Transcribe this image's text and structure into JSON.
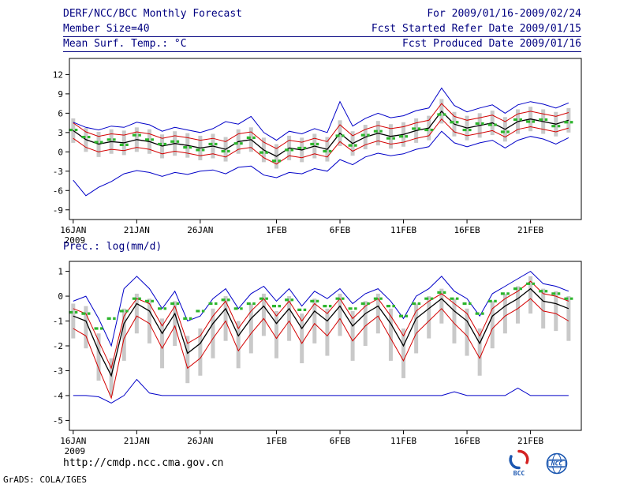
{
  "header": {
    "title": "DERF/NCC/BCC Monthly Forecast",
    "date_range": "For 2009/01/16-2009/02/24",
    "member_size": "Member Size=40",
    "refer_date": "Fcst Started Refer Date 2009/01/15",
    "variable_label": "Mean Surf. Temp.: °C",
    "produced_date": "Fcst Produced Date 2009/01/16"
  },
  "footer": {
    "url": "http://cmdp.ncc.cma.gov.cn",
    "credit": "GrADS: COLA/IGES",
    "bcc_logo_label": "BCC",
    "ncc_logo_label": "NCC"
  },
  "colors": {
    "header_text": "#000080",
    "axis_text": "#000000",
    "max_min_line": "#0000c8",
    "quartile_line": "#d40000",
    "mean_line": "#000000",
    "observation_dash": "#2db52d",
    "spread_bar": "#c9c9c9",
    "logo_blue": "#1a56b0",
    "logo_red": "#d42222"
  },
  "chart_data": [
    {
      "type": "line",
      "title": "Mean Surf. Temp.: °C",
      "xlabel": "",
      "ylabel": "",
      "x_sub_label": "2009",
      "n_days": 40,
      "ylim": [
        -10.5,
        14.5
      ],
      "yticks": [
        -9,
        -6,
        -3,
        0,
        3,
        6,
        9,
        12
      ],
      "x_tick_positions": [
        0,
        5,
        10,
        16,
        21,
        26,
        31,
        36
      ],
      "x_tick_labels": [
        "16JAN",
        "21JAN",
        "26JAN",
        "1FEB",
        "6FEB",
        "11FEB",
        "16FEB",
        "21FEB"
      ],
      "grid": false,
      "legend": false,
      "series": [
        {
          "name": "ensemble-spread",
          "type": "bar",
          "color": "#c9c9c9",
          "low": [
            1.4,
            0.0,
            -0.8,
            -0.3,
            -0.5,
            0.0,
            -0.3,
            -1.0,
            -0.6,
            -0.9,
            -1.3,
            -1.0,
            -1.5,
            -0.3,
            0.0,
            -1.6,
            -2.6,
            -1.3,
            -1.6,
            -1.0,
            -1.5,
            0.9,
            -0.6,
            0.4,
            1.0,
            0.5,
            0.8,
            1.4,
            1.8,
            4.4,
            2.4,
            1.8,
            2.2,
            2.6,
            1.6,
            2.8,
            3.2,
            2.8,
            2.4,
            3.0
          ],
          "high": [
            5.2,
            3.7,
            3.1,
            3.5,
            3.3,
            3.8,
            3.5,
            2.7,
            3.2,
            2.9,
            2.5,
            2.8,
            2.3,
            3.5,
            3.8,
            2.2,
            1.2,
            2.5,
            2.2,
            2.8,
            2.3,
            4.9,
            3.2,
            4.2,
            4.8,
            4.3,
            4.6,
            5.2,
            5.6,
            8.2,
            6.2,
            5.6,
            6.0,
            6.4,
            5.4,
            6.6,
            7.0,
            6.6,
            6.2,
            6.8
          ]
        },
        {
          "name": "ensemble-max",
          "type": "line",
          "color": "#0000c8",
          "width": 1,
          "values": [
            4.6,
            3.8,
            3.4,
            4.0,
            3.8,
            4.6,
            4.2,
            3.2,
            3.8,
            3.4,
            3.0,
            3.6,
            4.7,
            4.3,
            5.5,
            3.0,
            1.8,
            3.2,
            2.8,
            3.6,
            3.0,
            7.8,
            4.0,
            5.2,
            6.0,
            5.3,
            5.6,
            6.4,
            6.8,
            9.9,
            7.2,
            6.2,
            6.8,
            7.3,
            6.0,
            7.3,
            7.8,
            7.4,
            6.8,
            7.6
          ]
        },
        {
          "name": "ensemble-min",
          "type": "line",
          "color": "#0000c8",
          "width": 1,
          "values": [
            -4.4,
            -6.8,
            -5.5,
            -4.6,
            -3.4,
            -2.9,
            -3.2,
            -3.8,
            -3.2,
            -3.5,
            -3.0,
            -2.8,
            -3.4,
            -2.4,
            -2.2,
            -3.6,
            -4.0,
            -3.2,
            -3.4,
            -2.6,
            -3.0,
            -1.2,
            -2.0,
            -0.8,
            -0.2,
            -0.6,
            -0.3,
            0.4,
            0.8,
            3.2,
            1.4,
            0.8,
            1.4,
            1.8,
            0.6,
            1.8,
            2.4,
            2.0,
            1.2,
            2.2
          ]
        },
        {
          "name": "upper-quartile",
          "type": "line",
          "color": "#d40000",
          "width": 1,
          "values": [
            4.5,
            3.1,
            2.4,
            2.8,
            2.6,
            3.1,
            2.8,
            2.1,
            2.5,
            2.2,
            1.8,
            2.1,
            1.6,
            2.8,
            3.1,
            1.5,
            0.5,
            1.8,
            1.5,
            2.1,
            1.6,
            4.2,
            2.5,
            3.5,
            4.1,
            3.6,
            3.9,
            4.5,
            4.9,
            7.5,
            5.5,
            4.9,
            5.3,
            5.7,
            4.7,
            5.9,
            6.3,
            5.9,
            5.5,
            6.1
          ]
        },
        {
          "name": "lower-quartile",
          "type": "line",
          "color": "#d40000",
          "width": 1,
          "values": [
            2.1,
            0.7,
            0.0,
            0.4,
            0.2,
            0.7,
            0.4,
            -0.3,
            0.1,
            -0.2,
            -0.6,
            -0.3,
            -0.8,
            0.4,
            0.7,
            -0.9,
            -1.9,
            -0.6,
            -0.9,
            -0.3,
            -0.8,
            1.6,
            0.1,
            1.1,
            1.7,
            1.2,
            1.5,
            2.1,
            2.5,
            5.1,
            3.1,
            2.5,
            2.9,
            3.3,
            2.3,
            3.5,
            3.9,
            3.5,
            3.1,
            3.7
          ]
        },
        {
          "name": "ensemble-mean",
          "type": "line",
          "color": "#000000",
          "width": 1.3,
          "values": [
            3.3,
            1.9,
            1.2,
            1.6,
            1.4,
            1.9,
            1.6,
            0.9,
            1.3,
            1.0,
            0.6,
            0.9,
            0.4,
            1.6,
            1.9,
            0.3,
            -0.7,
            0.6,
            0.3,
            0.9,
            0.4,
            2.9,
            1.3,
            2.3,
            2.9,
            2.4,
            2.7,
            3.3,
            3.7,
            6.3,
            4.3,
            3.7,
            4.1,
            4.5,
            3.5,
            4.7,
            5.1,
            4.7,
            4.3,
            4.9
          ]
        },
        {
          "name": "observation",
          "type": "dash",
          "color": "#2db52d",
          "values": [
            3.4,
            2.3,
            1.5,
            1.9,
            1.1,
            2.6,
            1.9,
            1.2,
            1.6,
            0.7,
            0.3,
            1.2,
            0.1,
            1.3,
            2.2,
            -0.1,
            -1.4,
            0.3,
            0.6,
            1.2,
            0.1,
            2.5,
            1.0,
            2.6,
            3.2,
            2.1,
            2.4,
            3.6,
            3.4,
            5.8,
            4.6,
            3.4,
            4.4,
            4.2,
            3.1,
            5.0,
            4.7,
            5.0,
            4.0,
            4.6
          ]
        }
      ]
    },
    {
      "type": "line",
      "title": "Prec.: log(mm/d)",
      "xlabel": "",
      "ylabel": "",
      "x_sub_label": "2009",
      "n_days": 40,
      "ylim": [
        -5.4,
        1.4
      ],
      "yticks": [
        -5,
        -4,
        -3,
        -2,
        -1,
        0,
        1
      ],
      "x_tick_positions": [
        0,
        5,
        10,
        16,
        21,
        26,
        31,
        36
      ],
      "x_tick_labels": [
        "16JAN",
        "21JAN",
        "26JAN",
        "1FEB",
        "6FEB",
        "11FEB",
        "16FEB",
        "21FEB"
      ],
      "grid": false,
      "legend": false,
      "series": [
        {
          "name": "ensemble-spread",
          "type": "bar",
          "color": "#c9c9c9",
          "low": [
            -1.7,
            -2.1,
            -3.4,
            -4.0,
            -2.6,
            -1.5,
            -1.9,
            -2.9,
            -2.0,
            -3.5,
            -3.2,
            -2.5,
            -1.8,
            -2.9,
            -2.3,
            -1.6,
            -2.5,
            -1.8,
            -2.7,
            -1.9,
            -2.4,
            -1.6,
            -2.6,
            -2.0,
            -1.5,
            -2.6,
            -3.3,
            -2.3,
            -1.7,
            -1.1,
            -1.9,
            -2.4,
            -3.2,
            -2.1,
            -1.5,
            -1.1,
            -0.7,
            -1.3,
            -1.4,
            -1.8
          ],
          "high": [
            -0.3,
            -0.4,
            -1.5,
            -2.5,
            -0.5,
            0.1,
            -0.1,
            -0.9,
            -0.2,
            -1.6,
            -1.3,
            -0.5,
            0.0,
            -1.0,
            -0.3,
            0.1,
            -0.6,
            0.0,
            -0.7,
            -0.1,
            -0.5,
            0.1,
            -0.6,
            -0.2,
            0.1,
            -0.5,
            -1.3,
            -0.3,
            0.0,
            0.3,
            -0.1,
            -0.5,
            -1.3,
            -0.2,
            0.1,
            0.4,
            0.8,
            0.3,
            0.2,
            0.0
          ]
        },
        {
          "name": "ensemble-max",
          "type": "line",
          "color": "#0000c8",
          "width": 1,
          "values": [
            -0.2,
            0.0,
            -0.9,
            -2.0,
            0.3,
            0.8,
            0.3,
            -0.5,
            0.2,
            -1.0,
            -0.8,
            -0.1,
            0.3,
            -0.5,
            0.1,
            0.4,
            -0.2,
            0.3,
            -0.4,
            0.2,
            -0.1,
            0.3,
            -0.3,
            0.1,
            0.3,
            -0.2,
            -0.9,
            0.0,
            0.3,
            0.8,
            0.2,
            -0.1,
            -0.8,
            0.1,
            0.4,
            0.7,
            1.0,
            0.5,
            0.4,
            0.2
          ]
        },
        {
          "name": "ensemble-min",
          "type": "line",
          "color": "#0000c8",
          "width": 1,
          "values": [
            -4.0,
            -4.0,
            -4.05,
            -4.3,
            -4.0,
            -3.35,
            -3.9,
            -4.0,
            -4.0,
            -4.0,
            -4.0,
            -4.0,
            -4.0,
            -4.0,
            -4.0,
            -4.0,
            -4.0,
            -4.0,
            -4.0,
            -4.0,
            -4.0,
            -4.0,
            -4.0,
            -4.0,
            -4.0,
            -4.0,
            -4.0,
            -4.0,
            -4.0,
            -4.0,
            -3.85,
            -4.0,
            -4.0,
            -4.0,
            -4.0,
            -3.7,
            -4.0,
            -4.0,
            -4.0,
            -4.0
          ]
        },
        {
          "name": "upper-quartile",
          "type": "line",
          "color": "#d40000",
          "width": 1,
          "values": [
            -0.5,
            -0.7,
            -1.8,
            -2.9,
            -0.8,
            -0.1,
            -0.3,
            -1.2,
            -0.4,
            -1.9,
            -1.6,
            -0.8,
            -0.2,
            -1.3,
            -0.6,
            -0.1,
            -0.8,
            -0.2,
            -1.0,
            -0.3,
            -0.7,
            -0.1,
            -0.9,
            -0.4,
            -0.1,
            -0.8,
            -1.6,
            -0.6,
            -0.2,
            0.1,
            -0.3,
            -0.7,
            -1.6,
            -0.5,
            -0.1,
            0.2,
            0.6,
            0.1,
            0.0,
            -0.2
          ]
        },
        {
          "name": "lower-quartile",
          "type": "line",
          "color": "#d40000",
          "width": 1,
          "values": [
            -1.3,
            -1.6,
            -2.9,
            -4.1,
            -1.7,
            -0.8,
            -1.1,
            -2.1,
            -1.2,
            -2.9,
            -2.5,
            -1.7,
            -1.0,
            -2.2,
            -1.5,
            -0.9,
            -1.7,
            -1.0,
            -1.9,
            -1.1,
            -1.6,
            -0.9,
            -1.8,
            -1.2,
            -0.8,
            -1.7,
            -2.6,
            -1.5,
            -1.0,
            -0.5,
            -1.1,
            -1.6,
            -2.5,
            -1.3,
            -0.8,
            -0.5,
            -0.1,
            -0.6,
            -0.7,
            -1.0
          ]
        },
        {
          "name": "ensemble-mean",
          "type": "line",
          "color": "#000000",
          "width": 1.3,
          "values": [
            -0.8,
            -1.0,
            -2.2,
            -3.2,
            -1.1,
            -0.3,
            -0.6,
            -1.5,
            -0.7,
            -2.3,
            -1.9,
            -1.1,
            -0.5,
            -1.6,
            -0.9,
            -0.4,
            -1.1,
            -0.5,
            -1.3,
            -0.6,
            -1.0,
            -0.4,
            -1.2,
            -0.7,
            -0.4,
            -1.1,
            -2.0,
            -0.9,
            -0.5,
            -0.1,
            -0.6,
            -1.0,
            -1.9,
            -0.8,
            -0.4,
            -0.1,
            0.3,
            -0.2,
            -0.3,
            -0.5
          ]
        },
        {
          "name": "observation",
          "type": "dash",
          "color": "#2db52d",
          "values": [
            -0.65,
            -0.7,
            -1.3,
            -0.9,
            -0.6,
            -0.1,
            -0.2,
            -0.5,
            -0.3,
            -0.9,
            -0.6,
            -0.3,
            -0.15,
            -0.5,
            -0.3,
            -0.1,
            -0.4,
            -0.15,
            -0.55,
            -0.2,
            -0.4,
            -0.1,
            -0.5,
            -0.3,
            -0.1,
            -0.4,
            -0.8,
            -0.3,
            -0.1,
            0.15,
            -0.1,
            -0.3,
            -0.7,
            -0.2,
            0.1,
            0.3,
            0.5,
            0.2,
            0.1,
            -0.1
          ]
        }
      ]
    }
  ]
}
